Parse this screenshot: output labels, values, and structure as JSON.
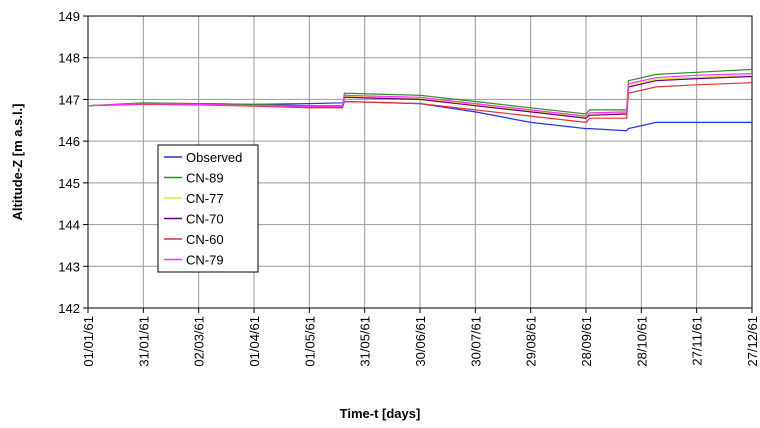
{
  "chart_data": {
    "type": "line",
    "x_label": "Time-t [days]",
    "y_label": "Altitude-Z [m a.s.l.]",
    "x": [
      "01/01/61",
      "31/01/61",
      "02/03/61",
      "01/04/61",
      "01/05/61",
      "19/05/61",
      "20/05/61",
      "30/06/61",
      "30/07/61",
      "29/08/61",
      "28/09/61",
      "30/09/61",
      "20/10/61",
      "21/10/61",
      "05/11/61",
      "27/11/61",
      "27/12/61"
    ],
    "xlim": [
      "01/01/61",
      "27/12/61"
    ],
    "xticks": [
      "01/01/61",
      "31/01/61",
      "02/03/61",
      "01/04/61",
      "01/05/61",
      "31/05/61",
      "30/06/61",
      "30/07/61",
      "29/08/61",
      "28/09/61",
      "28/10/61",
      "27/11/61",
      "27/12/61"
    ],
    "ylim": [
      142,
      149
    ],
    "yticks": [
      142,
      143,
      144,
      145,
      146,
      147,
      148,
      149
    ],
    "grid": true,
    "legend": "left",
    "series": [
      {
        "name": "Observed",
        "color": "#2030ff",
        "values": [
          146.85,
          146.9,
          146.9,
          146.88,
          146.9,
          146.92,
          146.95,
          146.9,
          146.7,
          146.45,
          146.3,
          146.3,
          146.25,
          146.3,
          146.45,
          146.45,
          146.45
        ]
      },
      {
        "name": "CN-89",
        "color": "#2e8b2e",
        "values": [
          146.85,
          146.92,
          146.9,
          146.88,
          146.85,
          146.85,
          147.15,
          147.1,
          146.95,
          146.8,
          146.65,
          146.75,
          146.75,
          147.45,
          147.6,
          147.65,
          147.72
        ]
      },
      {
        "name": "CN-77",
        "color": "#e8e830",
        "values": [
          146.85,
          146.9,
          146.88,
          146.85,
          146.82,
          146.82,
          147.08,
          147.02,
          146.88,
          146.72,
          146.58,
          146.65,
          146.68,
          147.35,
          147.48,
          147.53,
          147.58
        ]
      },
      {
        "name": "CN-70",
        "color": "#600080",
        "values": [
          146.85,
          146.9,
          146.88,
          146.85,
          146.82,
          146.82,
          147.05,
          147.0,
          146.85,
          146.7,
          146.55,
          146.62,
          146.65,
          147.3,
          147.45,
          147.5,
          147.55
        ]
      },
      {
        "name": "CN-60",
        "color": "#e83030",
        "values": [
          146.85,
          146.88,
          146.87,
          146.84,
          146.8,
          146.8,
          146.95,
          146.9,
          146.75,
          146.6,
          146.45,
          146.55,
          146.55,
          147.15,
          147.3,
          147.35,
          147.4
        ]
      },
      {
        "name": "CN-79",
        "color": "#ff30ff",
        "values": [
          146.85,
          146.9,
          146.88,
          146.85,
          146.83,
          146.83,
          147.1,
          147.05,
          146.9,
          146.75,
          146.6,
          146.68,
          146.7,
          147.38,
          147.52,
          147.58,
          147.62
        ]
      }
    ]
  }
}
